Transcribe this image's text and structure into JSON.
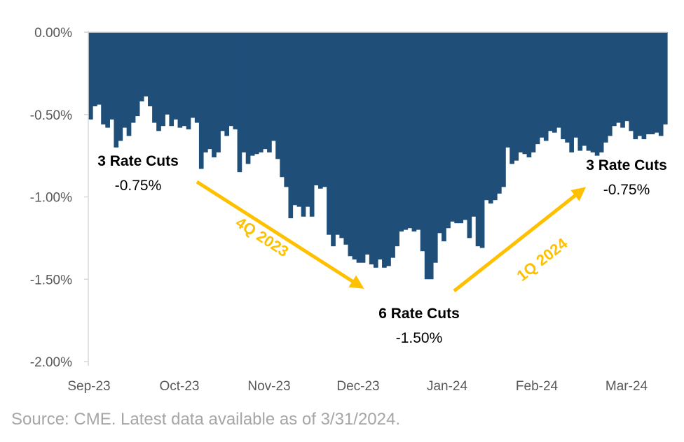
{
  "chart_data": {
    "type": "area",
    "ylim": [
      -2.0,
      0.0
    ],
    "y_ticks": [
      "0.00%",
      "-0.50%",
      "-1.00%",
      "-1.50%",
      "-2.00%"
    ],
    "x_ticks": [
      "Sep-23",
      "Oct-23",
      "Nov-23",
      "Dec-23",
      "Jan-24",
      "Feb-24",
      "Mar-24"
    ],
    "grid": false,
    "series": [
      {
        "color": "#1f4e79",
        "values": [
          -0.53,
          -0.45,
          -0.44,
          -0.56,
          -0.58,
          -0.53,
          -0.7,
          -0.66,
          -0.58,
          -0.63,
          -0.55,
          -0.51,
          -0.42,
          -0.39,
          -0.45,
          -0.55,
          -0.6,
          -0.57,
          -0.5,
          -0.57,
          -0.53,
          -0.58,
          -0.57,
          -0.59,
          -0.52,
          -0.55,
          -0.83,
          -0.73,
          -0.71,
          -0.76,
          -0.73,
          -0.6,
          -0.63,
          -0.57,
          -0.59,
          -0.85,
          -0.73,
          -0.8,
          -0.75,
          -0.74,
          -0.73,
          -0.71,
          -0.73,
          -0.66,
          -0.77,
          -0.88,
          -0.94,
          -1.13,
          -1.05,
          -1.06,
          -1.12,
          -1.06,
          -1.12,
          -0.93,
          -0.95,
          -0.94,
          -1.23,
          -1.3,
          -1.23,
          -1.25,
          -1.29,
          -1.36,
          -1.38,
          -1.4,
          -1.4,
          -1.35,
          -1.41,
          -1.43,
          -1.38,
          -1.43,
          -1.42,
          -1.37,
          -1.3,
          -1.21,
          -1.2,
          -1.19,
          -1.21,
          -1.2,
          -1.33,
          -1.5,
          -1.5,
          -1.4,
          -1.22,
          -1.27,
          -1.19,
          -1.15,
          -1.16,
          -1.16,
          -1.14,
          -1.25,
          -1.12,
          -1.3,
          -1.31,
          -1.02,
          -1.04,
          -1.02,
          -0.98,
          -0.94,
          -0.7,
          -0.8,
          -0.78,
          -0.73,
          -0.74,
          -0.76,
          -0.73,
          -0.68,
          -0.64,
          -0.66,
          -0.6,
          -0.61,
          -0.58,
          -0.65,
          -0.67,
          -0.73,
          -0.64,
          -0.72,
          -0.69,
          -0.72,
          -0.73,
          -0.75,
          -0.73,
          -0.67,
          -0.63,
          -0.57,
          -0.55,
          -0.58,
          -0.54,
          -0.6,
          -0.65,
          -0.63,
          -0.65,
          -0.62,
          -0.62,
          -0.61,
          -0.63,
          -0.56
        ]
      }
    ],
    "annotations": [
      {
        "title": "3 Rate Cuts",
        "value": "-0.75%"
      },
      {
        "title": "6 Rate Cuts",
        "value": "-1.50%"
      },
      {
        "title": "3 Rate Cuts",
        "value": "-0.75%"
      }
    ],
    "quarter_labels": [
      "4Q 2023",
      "1Q 2024"
    ],
    "arrow_color": "#ffc000"
  },
  "source": "Source: CME. Latest data available as of 3/31/2024."
}
